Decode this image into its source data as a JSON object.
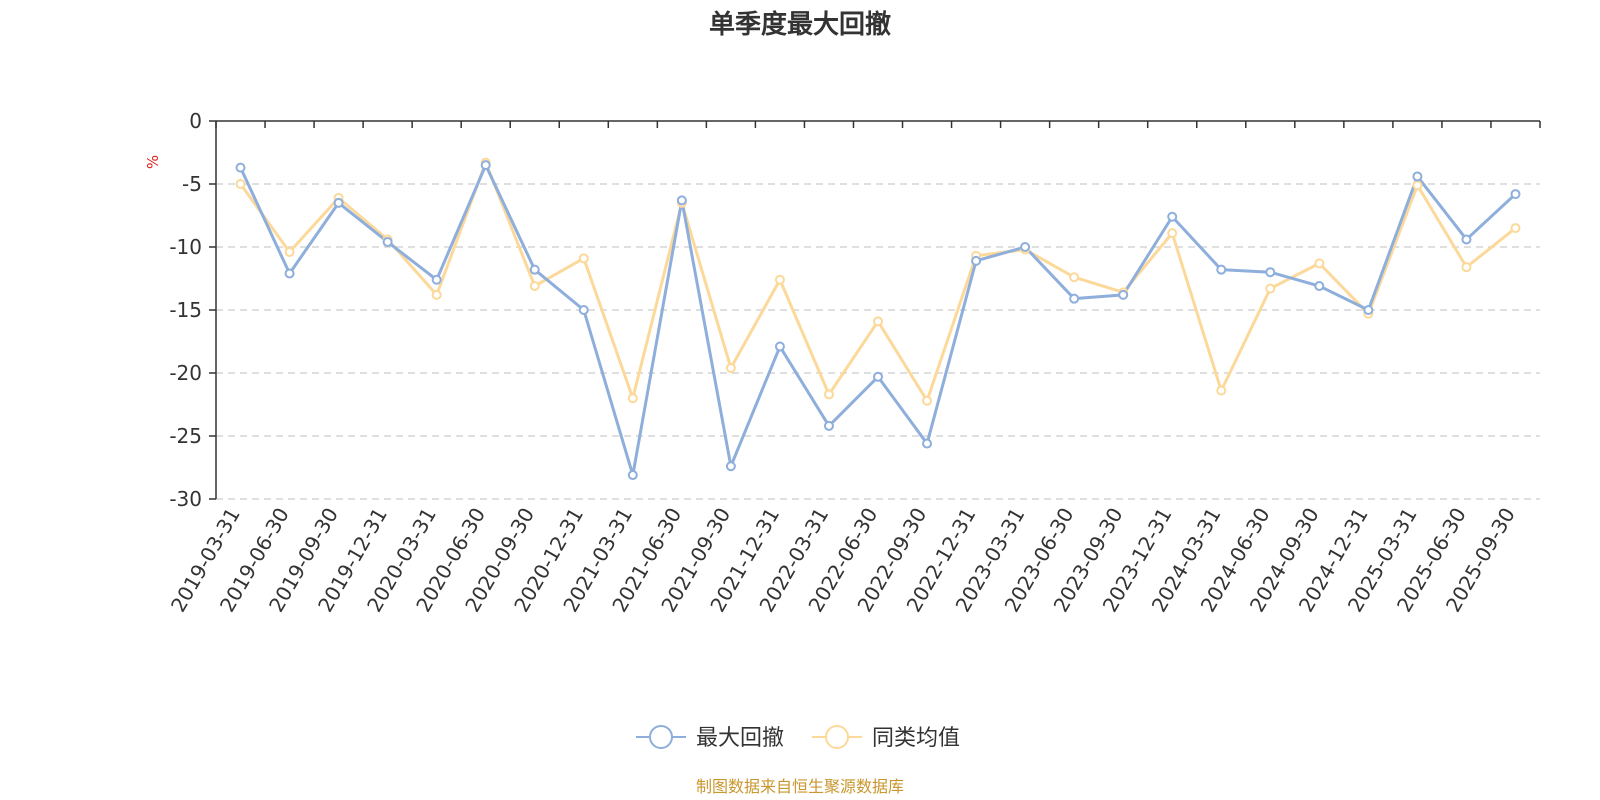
{
  "chart_data": {
    "type": "line",
    "title": "单季度最大回撤",
    "ylabel": "%",
    "ylim": [
      -30,
      0
    ],
    "yticks": [
      "0",
      "-5",
      "-10",
      "-15",
      "-20",
      "-25",
      "-30"
    ],
    "categories": [
      "2019-03-31",
      "2019-06-30",
      "2019-09-30",
      "2019-12-31",
      "2020-03-31",
      "2020-06-30",
      "2020-09-30",
      "2020-12-31",
      "2021-03-31",
      "2021-06-30",
      "2021-09-30",
      "2021-12-31",
      "2022-03-31",
      "2022-06-30",
      "2022-09-30",
      "2022-12-31",
      "2023-03-31",
      "2023-06-30",
      "2023-09-30",
      "2023-12-31",
      "2024-03-31",
      "2024-06-30",
      "2024-09-30",
      "2024-12-31",
      "2025-03-31",
      "2025-06-30",
      "2025-09-30"
    ],
    "series": [
      {
        "name": "最大回撤",
        "color": "#8eaedb",
        "values": [
          -3.7,
          -12.1,
          -6.5,
          -9.6,
          -12.6,
          -3.5,
          -11.8,
          -15.0,
          -28.1,
          -6.3,
          -27.4,
          -17.9,
          -24.2,
          -20.3,
          -25.6,
          -11.1,
          -10.0,
          -14.1,
          -13.8,
          -7.6,
          -11.8,
          -12.0,
          -13.1,
          -15.0,
          -4.4,
          -9.4,
          -5.8
        ]
      },
      {
        "name": "同类均值",
        "color": "#fcd99a",
        "values": [
          -5.0,
          -10.4,
          -6.1,
          -9.4,
          -13.8,
          -3.3,
          -13.1,
          -10.9,
          -22.0,
          -6.5,
          -19.6,
          -12.6,
          -21.7,
          -15.9,
          -22.2,
          -10.7,
          -10.2,
          -12.4,
          -13.6,
          -8.9,
          -21.4,
          -13.3,
          -11.3,
          -15.3,
          -5.1,
          -11.6,
          -8.5
        ]
      }
    ],
    "grid": true,
    "legend_position": "bottom-center"
  },
  "footer": {
    "source": "制图数据来自恒生聚源数据库",
    "source_color": "#c9972e"
  }
}
